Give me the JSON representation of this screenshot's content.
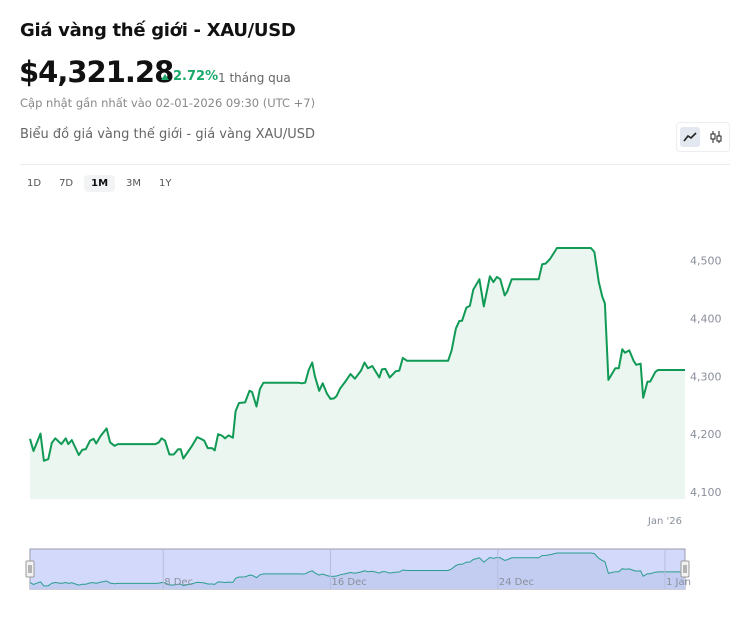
{
  "header": {
    "title": "Giá vàng thế giới - XAU/USD",
    "price": "$4,321.28",
    "change": "2.72%",
    "change_direction": "up",
    "period": "1 tháng qua",
    "updated": "Cập nhật gần nhất vào 02-01-2026 09:30 (UTC +7)",
    "chart_subtitle": "Biểu đồ giá vàng thế giới - giá vàng XAU/USD"
  },
  "chart_type_toggle": [
    {
      "icon": "line-chart-icon",
      "active": true
    },
    {
      "icon": "candlestick-icon",
      "active": false
    }
  ],
  "ranges": [
    {
      "label": "1D",
      "active": false
    },
    {
      "label": "7D",
      "active": false
    },
    {
      "label": "1M",
      "active": true
    },
    {
      "label": "3M",
      "active": false
    },
    {
      "label": "1Y",
      "active": false
    }
  ],
  "colors": {
    "line": "#109a55",
    "fill": "#eaf6ef",
    "up": "#1aa96b",
    "navigator_bg": "#d3d9fb",
    "navigator_line": "#2a9d8f"
  },
  "chart_data": {
    "type": "area",
    "title": "",
    "xlabel": "",
    "ylabel": "",
    "ylim": [
      4088,
      4560
    ],
    "yticks": [
      "4,100",
      "4,200",
      "4,300",
      "4,400",
      "4,500"
    ],
    "ytick_values": [
      4100,
      4200,
      4300,
      4400,
      4500
    ],
    "xticks": [
      {
        "label": "Jan '26",
        "date": "2026-01-01T00:00"
      }
    ],
    "navigator_ticks": [
      {
        "label": "8 Dec",
        "date": "2025-12-08T00:00"
      },
      {
        "label": "16 Dec",
        "date": "2025-12-16T00:00"
      },
      {
        "label": "24 Dec",
        "date": "2025-12-24T00:00"
      },
      {
        "label": "1 Jan",
        "date": "2026-01-01T00:00"
      }
    ],
    "grid": false,
    "legend": "none",
    "points": [
      [
        "2025-12-01T15:00",
        4192
      ],
      [
        "2025-12-01T19:00",
        4171
      ],
      [
        "2025-12-02T03:00",
        4201
      ],
      [
        "2025-12-02T07:00",
        4154
      ],
      [
        "2025-12-02T12:00",
        4157
      ],
      [
        "2025-12-02T16:00",
        4185
      ],
      [
        "2025-12-02T20:00",
        4193
      ],
      [
        "2025-12-03T03:00",
        4183
      ],
      [
        "2025-12-03T08:00",
        4193
      ],
      [
        "2025-12-03T11:00",
        4183
      ],
      [
        "2025-12-03T15:00",
        4190
      ],
      [
        "2025-12-03T23:00",
        4164
      ],
      [
        "2025-12-04T03:00",
        4173
      ],
      [
        "2025-12-04T07:00",
        4174
      ],
      [
        "2025-12-04T12:00",
        4189
      ],
      [
        "2025-12-04T16:00",
        4192
      ],
      [
        "2025-12-04T19:00",
        4184
      ],
      [
        "2025-12-05T00:00",
        4197
      ],
      [
        "2025-12-05T07:00",
        4210
      ],
      [
        "2025-12-05T11:00",
        4186
      ],
      [
        "2025-12-05T16:00",
        4180
      ],
      [
        "2025-12-05T20:00",
        4183
      ],
      [
        "2025-12-07T15:00",
        4183
      ],
      [
        "2025-12-07T19:00",
        4186
      ],
      [
        "2025-12-07T22:00",
        4193
      ],
      [
        "2025-12-08T02:00",
        4189
      ],
      [
        "2025-12-08T07:00",
        4165
      ],
      [
        "2025-12-08T12:00",
        4165
      ],
      [
        "2025-12-08T17:00",
        4174
      ],
      [
        "2025-12-08T20:00",
        4174
      ],
      [
        "2025-12-08T23:00",
        4158
      ],
      [
        "2025-12-09T05:00",
        4171
      ],
      [
        "2025-12-09T09:00",
        4180
      ],
      [
        "2025-12-09T15:00",
        4195
      ],
      [
        "2025-12-09T18:00",
        4193
      ],
      [
        "2025-12-09T23:00",
        4189
      ],
      [
        "2025-12-10T03:00",
        4176
      ],
      [
        "2025-12-10T08:00",
        4176
      ],
      [
        "2025-12-10T11:00",
        4172
      ],
      [
        "2025-12-10T15:00",
        4200
      ],
      [
        "2025-12-10T19:00",
        4198
      ],
      [
        "2025-12-10T23:00",
        4193
      ],
      [
        "2025-12-11T03:00",
        4198
      ],
      [
        "2025-12-11T08:00",
        4194
      ],
      [
        "2025-12-11T11:00",
        4240
      ],
      [
        "2025-12-11T15:00",
        4254
      ],
      [
        "2025-12-11T22:00",
        4255
      ],
      [
        "2025-12-12T03:00",
        4275
      ],
      [
        "2025-12-12T06:00",
        4273
      ],
      [
        "2025-12-12T11:00",
        4248
      ],
      [
        "2025-12-12T15:00",
        4278
      ],
      [
        "2025-12-12T19:00",
        4289
      ],
      [
        "2025-12-14T11:00",
        4289
      ],
      [
        "2025-12-14T15:00",
        4288
      ],
      [
        "2025-12-14T19:00",
        4289
      ],
      [
        "2025-12-14T23:00",
        4311
      ],
      [
        "2025-12-15T03:00",
        4324
      ],
      [
        "2025-12-15T06:00",
        4301
      ],
      [
        "2025-12-15T11:00",
        4275
      ],
      [
        "2025-12-15T15:00",
        4288
      ],
      [
        "2025-12-15T20:00",
        4270
      ],
      [
        "2025-12-16T00:00",
        4261
      ],
      [
        "2025-12-16T04:00",
        4262
      ],
      [
        "2025-12-16T07:00",
        4266
      ],
      [
        "2025-12-16T11:00",
        4279
      ],
      [
        "2025-12-16T17:00",
        4291
      ],
      [
        "2025-12-16T23:00",
        4304
      ],
      [
        "2025-12-17T04:00",
        4296
      ],
      [
        "2025-12-17T11:00",
        4310
      ],
      [
        "2025-12-17T15:00",
        4324
      ],
      [
        "2025-12-17T19:00",
        4314
      ],
      [
        "2025-12-18T00:00",
        4318
      ],
      [
        "2025-12-18T08:00",
        4298
      ],
      [
        "2025-12-18T11:00",
        4312
      ],
      [
        "2025-12-18T15:00",
        4313
      ],
      [
        "2025-12-18T20:00",
        4298
      ],
      [
        "2025-12-19T03:00",
        4309
      ],
      [
        "2025-12-19T07:00",
        4310
      ],
      [
        "2025-12-19T11:00",
        4332
      ],
      [
        "2025-12-19T16:00",
        4327
      ],
      [
        "2025-12-21T15:00",
        4327
      ],
      [
        "2025-12-21T19:00",
        4345
      ],
      [
        "2025-12-22T00:00",
        4383
      ],
      [
        "2025-12-22T04:00",
        4396
      ],
      [
        "2025-12-22T07:00",
        4396
      ],
      [
        "2025-12-22T12:00",
        4419
      ],
      [
        "2025-12-22T16:00",
        4422
      ],
      [
        "2025-12-22T20:00",
        4450
      ],
      [
        "2025-12-23T03:00",
        4468
      ],
      [
        "2025-12-23T08:00",
        4421
      ],
      [
        "2025-12-23T15:00",
        4473
      ],
      [
        "2025-12-23T19:00",
        4463
      ],
      [
        "2025-12-23T23:00",
        4472
      ],
      [
        "2025-12-24T03:00",
        4468
      ],
      [
        "2025-12-24T08:00",
        4440
      ],
      [
        "2025-12-24T11:00",
        4447
      ],
      [
        "2025-12-24T16:00",
        4468
      ],
      [
        "2025-12-25T23:00",
        4468
      ],
      [
        "2025-12-26T03:00",
        4494
      ],
      [
        "2025-12-26T07:00",
        4495
      ],
      [
        "2025-12-26T12:00",
        4503
      ],
      [
        "2025-12-26T20:00",
        4522
      ],
      [
        "2025-12-28T11:00",
        4522
      ],
      [
        "2025-12-28T15:00",
        4515
      ],
      [
        "2025-12-28T20:00",
        4463
      ],
      [
        "2025-12-29T00:00",
        4438
      ],
      [
        "2025-12-29T03:00",
        4426
      ],
      [
        "2025-12-29T07:00",
        4294
      ],
      [
        "2025-12-29T15:00",
        4314
      ],
      [
        "2025-12-29T19:00",
        4314
      ],
      [
        "2025-12-29T23:00",
        4347
      ],
      [
        "2025-12-30T02:00",
        4341
      ],
      [
        "2025-12-30T07:00",
        4345
      ],
      [
        "2025-12-30T12:00",
        4327
      ],
      [
        "2025-12-30T15:00",
        4320
      ],
      [
        "2025-12-30T20:00",
        4322
      ],
      [
        "2025-12-30T23:00",
        4263
      ],
      [
        "2025-12-31T04:00",
        4291
      ],
      [
        "2025-12-31T07:00",
        4291
      ],
      [
        "2025-12-31T13:00",
        4308
      ],
      [
        "2025-12-31T16:00",
        4311
      ],
      [
        "2026-01-01T23:00",
        4311
      ]
    ]
  }
}
